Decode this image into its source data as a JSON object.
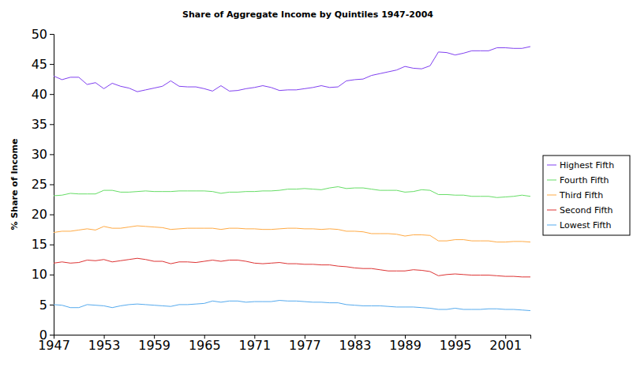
{
  "chart_data": {
    "type": "line",
    "title": "Share of Aggregate Income by Quintiles 1947-2004",
    "y_label": "% Share of Income",
    "x": [
      1947,
      1948,
      1949,
      1950,
      1951,
      1952,
      1953,
      1954,
      1955,
      1956,
      1957,
      1958,
      1959,
      1960,
      1961,
      1962,
      1963,
      1964,
      1965,
      1966,
      1967,
      1968,
      1969,
      1970,
      1971,
      1972,
      1973,
      1974,
      1975,
      1976,
      1977,
      1978,
      1979,
      1980,
      1981,
      1982,
      1983,
      1984,
      1985,
      1986,
      1987,
      1988,
      1989,
      1990,
      1991,
      1992,
      1993,
      1994,
      1995,
      1996,
      1997,
      1998,
      1999,
      2000,
      2001,
      2002,
      2003,
      2004
    ],
    "xlim": [
      1947,
      2004
    ],
    "xticks": [
      1947,
      1953,
      1959,
      1965,
      1971,
      1977,
      1983,
      1989,
      1995,
      2001
    ],
    "ylim": [
      0,
      50
    ],
    "yticks": [
      0,
      5,
      10,
      15,
      20,
      25,
      30,
      35,
      40,
      45,
      50
    ],
    "grid": false,
    "legend": "right",
    "series": [
      {
        "name": "Highest Fifth",
        "color": "#8040f0",
        "values": [
          43.0,
          42.4,
          42.8,
          42.8,
          41.6,
          41.9,
          40.9,
          41.8,
          41.3,
          41.0,
          40.4,
          40.7,
          41.0,
          41.3,
          42.2,
          41.3,
          41.2,
          41.2,
          40.9,
          40.5,
          41.4,
          40.5,
          40.6,
          40.9,
          41.1,
          41.4,
          41.1,
          40.6,
          40.7,
          40.7,
          40.9,
          41.1,
          41.4,
          41.1,
          41.2,
          42.2,
          42.4,
          42.5,
          43.1,
          43.4,
          43.7,
          44.0,
          44.6,
          44.3,
          44.2,
          44.7,
          47.0,
          46.9,
          46.5,
          46.8,
          47.2,
          47.2,
          47.2,
          47.7,
          47.7,
          47.6,
          47.6,
          47.9
        ]
      },
      {
        "name": "Fourth Fifth",
        "color": "#66dd66",
        "values": [
          23.1,
          23.2,
          23.5,
          23.4,
          23.4,
          23.4,
          24.0,
          24.0,
          23.7,
          23.7,
          23.8,
          23.9,
          23.8,
          23.8,
          23.8,
          23.9,
          23.9,
          23.9,
          23.9,
          23.8,
          23.5,
          23.7,
          23.7,
          23.8,
          23.8,
          23.9,
          23.9,
          24.0,
          24.2,
          24.2,
          24.3,
          24.2,
          24.1,
          24.4,
          24.6,
          24.3,
          24.4,
          24.4,
          24.2,
          24.0,
          24.0,
          24.0,
          23.7,
          23.8,
          24.1,
          24.0,
          23.3,
          23.3,
          23.2,
          23.2,
          23.0,
          23.0,
          23.0,
          22.8,
          22.9,
          23.0,
          23.2,
          23.0
        ]
      },
      {
        "name": "Third Fifth",
        "color": "#ffaa44",
        "values": [
          17.0,
          17.2,
          17.2,
          17.4,
          17.6,
          17.4,
          18.0,
          17.7,
          17.7,
          17.9,
          18.1,
          18.0,
          17.9,
          17.8,
          17.5,
          17.6,
          17.7,
          17.7,
          17.7,
          17.7,
          17.5,
          17.7,
          17.7,
          17.6,
          17.6,
          17.5,
          17.5,
          17.6,
          17.7,
          17.7,
          17.6,
          17.6,
          17.5,
          17.6,
          17.5,
          17.2,
          17.2,
          17.1,
          16.8,
          16.8,
          16.8,
          16.7,
          16.4,
          16.6,
          16.6,
          16.5,
          15.6,
          15.6,
          15.8,
          15.8,
          15.6,
          15.6,
          15.6,
          15.4,
          15.4,
          15.5,
          15.5,
          15.4
        ]
      },
      {
        "name": "Second Fifth",
        "color": "#dd3333",
        "values": [
          11.9,
          12.1,
          11.9,
          12.0,
          12.4,
          12.3,
          12.5,
          12.1,
          12.3,
          12.5,
          12.7,
          12.5,
          12.2,
          12.2,
          11.8,
          12.1,
          12.1,
          12.0,
          12.2,
          12.4,
          12.2,
          12.4,
          12.4,
          12.2,
          11.9,
          11.8,
          11.9,
          12.0,
          11.8,
          11.8,
          11.7,
          11.7,
          11.6,
          11.6,
          11.4,
          11.3,
          11.1,
          11.0,
          11.0,
          10.8,
          10.6,
          10.6,
          10.6,
          10.8,
          10.7,
          10.5,
          9.8,
          10.0,
          10.1,
          10.0,
          9.9,
          9.9,
          9.9,
          9.8,
          9.7,
          9.7,
          9.6,
          9.6
        ]
      },
      {
        "name": "Lowest Fifth",
        "color": "#55aaee",
        "values": [
          5.0,
          4.9,
          4.5,
          4.5,
          5.0,
          4.9,
          4.8,
          4.5,
          4.8,
          5.0,
          5.1,
          5.0,
          4.9,
          4.8,
          4.7,
          5.0,
          5.0,
          5.1,
          5.2,
          5.6,
          5.4,
          5.6,
          5.6,
          5.4,
          5.5,
          5.5,
          5.5,
          5.7,
          5.6,
          5.6,
          5.5,
          5.4,
          5.4,
          5.3,
          5.3,
          5.0,
          4.9,
          4.8,
          4.8,
          4.8,
          4.7,
          4.6,
          4.6,
          4.6,
          4.5,
          4.4,
          4.2,
          4.2,
          4.4,
          4.2,
          4.2,
          4.2,
          4.3,
          4.3,
          4.2,
          4.2,
          4.1,
          4.0
        ]
      }
    ]
  }
}
